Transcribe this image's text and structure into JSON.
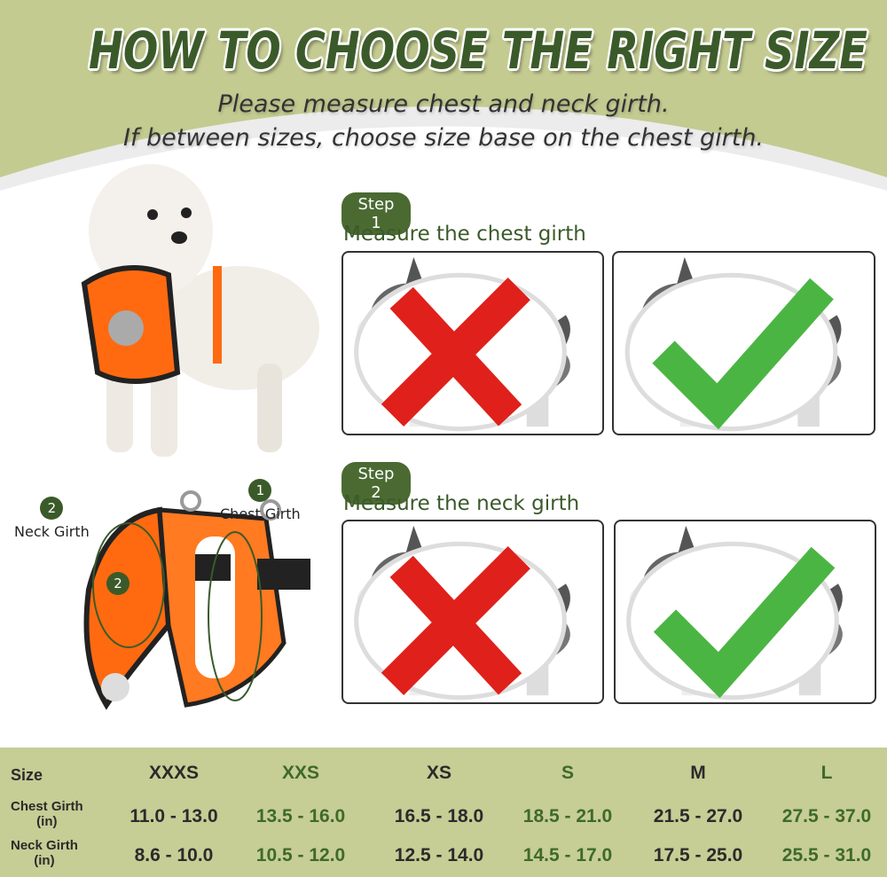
{
  "title": "HOW TO CHOOSE THE RIGHT SIZE",
  "subtitle_lines": [
    "Please measure chest and neck girth.",
    "If between sizes, choose size base on the chest girth."
  ],
  "colors": {
    "header_green": "#c3cb91",
    "dark_green": "#3b5a2a",
    "harness_orange": "#ff6a10",
    "table_bg": "#c6cd95",
    "value_green": "#3e6a2b"
  },
  "steps": [
    {
      "badge": "Step 1",
      "text": "Measure the chest girth",
      "wrong_icon": "red-cross-icon",
      "right_icon": "green-check-icon"
    },
    {
      "badge": "Step 2",
      "text": "Measure the neck girth",
      "wrong_icon": "red-cross-icon",
      "right_icon": "green-check-icon"
    }
  ],
  "harness_labels": [
    {
      "num": "1",
      "text": "Chest Girth"
    },
    {
      "num": "2",
      "text": "Neck Girth"
    }
  ],
  "harness_inner_num": "2",
  "size_table": {
    "row_labels": [
      [
        "Size"
      ],
      [
        "Chest Girth",
        "(in)"
      ],
      [
        "Neck Girth",
        "(in)"
      ]
    ],
    "sizes": [
      "XXXS",
      "XXS",
      "XS",
      "S",
      "M",
      "L"
    ],
    "chest": [
      "11.0 - 13.0",
      "13.5 - 16.0",
      "16.5 - 18.0",
      "18.5 - 21.0",
      "21.5 - 27.0",
      "27.5 - 37.0"
    ],
    "neck": [
      "8.6 - 10.0",
      "10.5 - 12.0",
      "12.5 - 14.0",
      "14.5 - 17.0",
      "17.5 - 25.0",
      "25.5 - 31.0"
    ]
  }
}
